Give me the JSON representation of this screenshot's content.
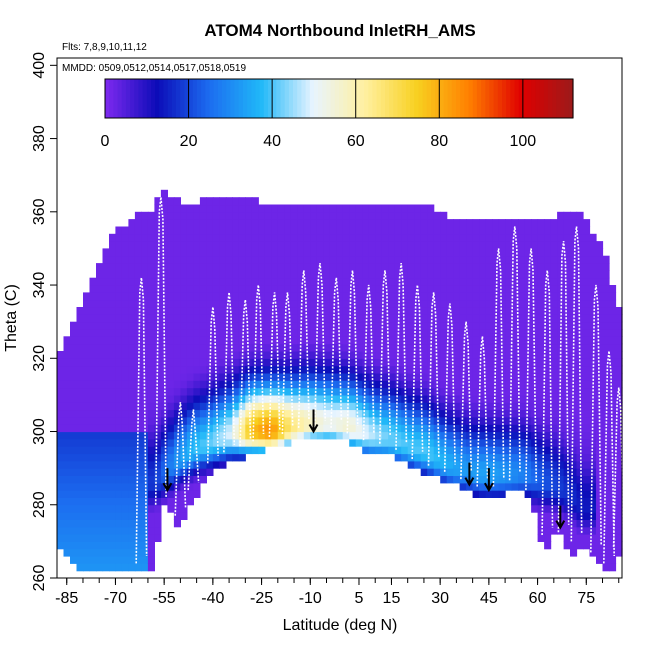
{
  "chart_data": {
    "type": "heatmap",
    "title": "ATOM4 Northbound InletRH_AMS",
    "flights_note": "Flts: 7,8,9,10,11,12",
    "dates_note": "MMDD: 0509,0512,0514,0517,0518,0519",
    "xlabel": "Latitude (deg N)",
    "ylabel": "Theta (C)",
    "xlim": [
      -88,
      86
    ],
    "ylim": [
      260,
      402
    ],
    "xticks": [
      -85,
      -70,
      -55,
      -40,
      -25,
      -10,
      5,
      15,
      30,
      45,
      60,
      75
    ],
    "yticks": [
      260,
      280,
      300,
      320,
      340,
      360,
      380,
      400
    ],
    "colorbar": {
      "range": [
        0,
        112
      ],
      "ticks": [
        0,
        20,
        40,
        60,
        80,
        100
      ],
      "colors": [
        "#7f2af0",
        "#0c0cb8",
        "#1c6cf0",
        "#20b8f8",
        "#e8f4ff",
        "#fff0a0",
        "#f8d020",
        "#ff8000",
        "#e00000",
        "#9c1a1a"
      ]
    },
    "arrow_latitudes": [
      -54,
      -9,
      39,
      45,
      67
    ],
    "ceiling_profile": {
      "lat": [
        -88,
        -80,
        -72,
        -64,
        -58,
        -56,
        -50,
        -44,
        -38,
        -32,
        -25,
        -17,
        -5,
        5,
        15,
        25,
        35,
        45,
        55,
        65,
        72,
        80,
        86
      ],
      "theta_top": [
        320,
        336,
        352,
        358,
        360,
        366,
        362,
        362,
        363,
        364,
        362,
        361,
        361,
        361,
        361,
        361,
        357,
        358,
        357,
        358,
        360,
        350,
        330
      ]
    },
    "floor_profile": {
      "lat": [
        -88,
        -80,
        -70,
        -62,
        -58,
        -56,
        -54,
        -52,
        -50,
        -46,
        -42,
        -36,
        -30,
        -24,
        -18,
        -12,
        -6,
        0,
        6,
        12,
        18,
        24,
        30,
        36,
        42,
        48,
        54,
        58,
        62,
        66,
        70,
        74,
        78,
        82,
        86
      ],
      "theta_bottom": [
        270,
        262,
        262,
        262,
        262,
        278,
        283,
        276,
        275,
        282,
        288,
        292,
        294,
        296,
        297,
        299,
        299,
        299,
        296,
        295,
        293,
        290,
        288,
        286,
        283,
        283,
        285,
        282,
        268,
        275,
        266,
        270,
        265,
        262,
        268
      ]
    },
    "humidity_core": {
      "lat": [
        -58,
        -52,
        -46,
        -40,
        -34,
        -28,
        -22,
        -16,
        -10,
        -4,
        2,
        8,
        14,
        20,
        26,
        32,
        38,
        44,
        50,
        56,
        62,
        68,
        74
      ],
      "rh_peak": [
        18,
        30,
        38,
        42,
        50,
        78,
        85,
        66,
        58,
        52,
        56,
        48,
        42,
        40,
        40,
        36,
        32,
        34,
        32,
        28,
        22,
        18,
        14
      ],
      "theta_peak": [
        285,
        290,
        294,
        296,
        298,
        299,
        299,
        300,
        301,
        301,
        300,
        298,
        297,
        295,
        293,
        290,
        288,
        287,
        287,
        287,
        285,
        283,
        278
      ]
    },
    "flight_profiles_lat": [
      -62,
      -56,
      -50,
      -46,
      -40,
      -35,
      -30,
      -26,
      -21,
      -17,
      -12,
      -7,
      -2,
      3,
      8,
      13,
      18,
      23,
      28,
      33,
      38,
      43,
      48,
      53,
      58,
      63,
      68,
      72,
      78,
      82,
      85
    ],
    "flight_profiles_theta_max": [
      342,
      364,
      308,
      306,
      334,
      338,
      336,
      340,
      338,
      338,
      344,
      346,
      342,
      344,
      340,
      344,
      346,
      340,
      338,
      335,
      330,
      326,
      350,
      356,
      350,
      344,
      352,
      356,
      340,
      322,
      312
    ]
  }
}
